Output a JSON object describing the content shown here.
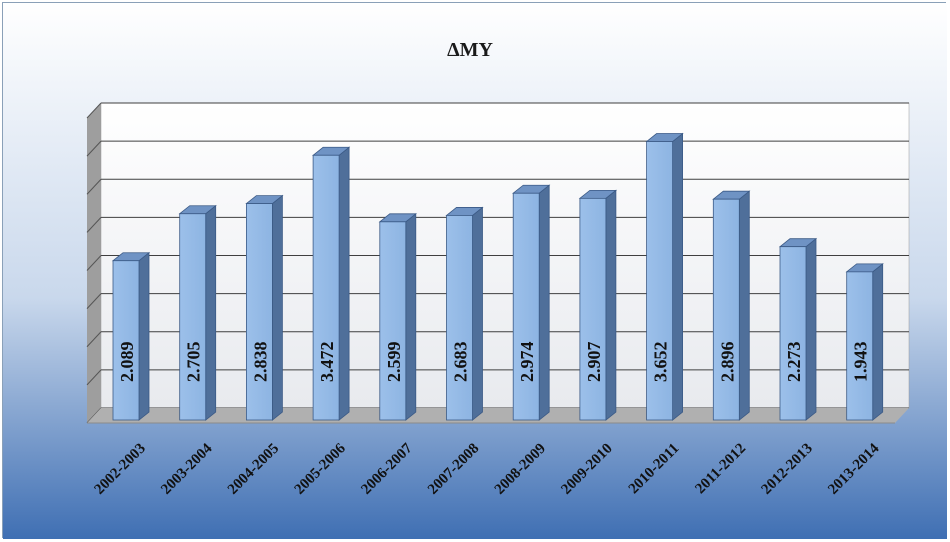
{
  "chart_data": {
    "type": "bar",
    "title": "ΔΜΥ",
    "xlabel": "",
    "ylabel": "",
    "categories": [
      "2002-2003",
      "2003-2004",
      "2004-2005",
      "2005-2006",
      "2006-2007",
      "2007-2008",
      "2008-2009",
      "2009-2010",
      "2010-2011",
      "2011-2012",
      "2012-2013",
      "2013-2014"
    ],
    "values": [
      2.089,
      2.705,
      2.838,
      3.472,
      2.599,
      2.683,
      2.974,
      2.907,
      3.652,
      2.896,
      2.273,
      1.943
    ],
    "value_labels": [
      "2.089",
      "2.705",
      "2.838",
      "3.472",
      "2.599",
      "2.683",
      "2.974",
      "2.907",
      "3.652",
      "2.896",
      "2.273",
      "1.943"
    ],
    "ylim": [
      0,
      4
    ],
    "grid": true,
    "legend": "none",
    "style": "3d-column",
    "colors": {
      "bar_front": "#8db4e2",
      "bar_side": "#4f6f9a",
      "bar_top": "#6f93c4",
      "bar_edge": "#3b5a86",
      "background_top": "#ffffff",
      "background_bottom": "#3f6fb3",
      "wall": "#f2f2f2",
      "side_wall": "#9e9e9e",
      "floor": "#b0b0b0",
      "gridline": "#3f3f3f"
    }
  }
}
